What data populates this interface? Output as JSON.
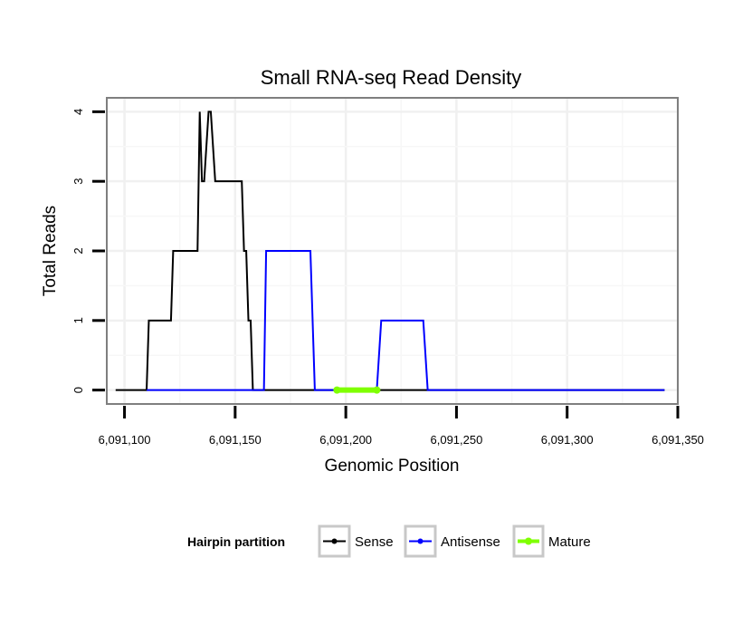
{
  "chart_data": {
    "type": "line",
    "title": "Small RNA-seq Read Density",
    "xlabel": "Genomic Position",
    "ylabel": "Total Reads",
    "xlim": [
      6091092,
      6091350
    ],
    "ylim": [
      -0.2,
      4.2
    ],
    "x_ticks": [
      6091100,
      6091150,
      6091200,
      6091250,
      6091300,
      6091350
    ],
    "x_tick_labels": [
      "6,091,100",
      "6,091,150",
      "6,091,200",
      "6,091,250",
      "6,091,300",
      "6,091,350"
    ],
    "y_ticks": [
      0,
      1,
      2,
      3,
      4
    ],
    "y_tick_labels": [
      "0",
      "1",
      "2",
      "3",
      "4"
    ],
    "grid": true,
    "legend": {
      "title": "Hairpin partition",
      "position": "bottom"
    },
    "series": [
      {
        "name": "Sense",
        "color": "#000000",
        "x": [
          6091096,
          6091110,
          6091111,
          6091121,
          6091122,
          6091133,
          6091134,
          6091135,
          6091136,
          6091138,
          6091139,
          6091141,
          6091142,
          6091153,
          6091154,
          6091155,
          6091156,
          6091157,
          6091158,
          6091159,
          6091344
        ],
        "y": [
          0,
          0,
          1,
          1,
          2,
          2,
          4,
          3,
          3,
          4,
          4,
          3,
          3,
          3,
          2,
          2,
          1,
          1,
          0,
          0,
          0
        ]
      },
      {
        "name": "Antisense",
        "color": "#0000FF",
        "x": [
          6091110,
          6091163,
          6091164,
          6091184,
          6091186,
          6091214,
          6091216,
          6091235,
          6091237,
          6091344
        ],
        "y": [
          0,
          0,
          2,
          2,
          0,
          0,
          1,
          1,
          0,
          0
        ]
      },
      {
        "name": "Mature",
        "color": "#7FFF00",
        "x": [
          6091196,
          6091214
        ],
        "y": [
          0,
          0
        ]
      }
    ]
  }
}
